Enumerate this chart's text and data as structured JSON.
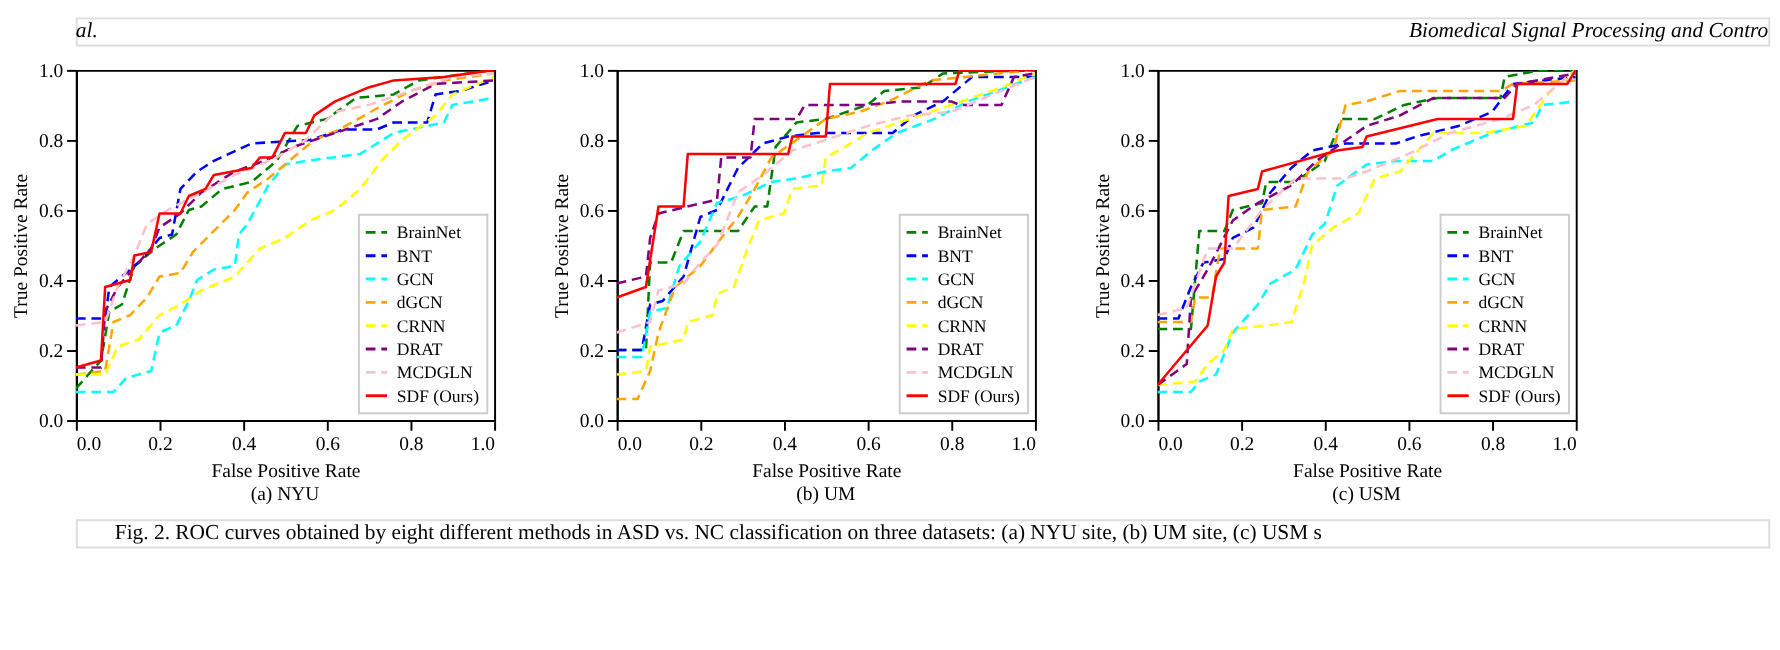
{
  "chart_data": [
    {
      "type": "line",
      "title": "(a) NYU",
      "xlabel": "False Positive Rate",
      "ylabel": "True Positive Rate",
      "xlim": [
        0,
        1
      ],
      "ylim": [
        0,
        1
      ],
      "xticks": [
        {
          "value": 0,
          "label": "0.0"
        },
        {
          "value": 0.2,
          "label": "0.2"
        },
        {
          "value": 0.4,
          "label": "0.4"
        },
        {
          "value": 0.6,
          "label": "0.6"
        },
        {
          "value": 0.8,
          "label": "0.8"
        },
        {
          "value": 1,
          "label": "1.0"
        }
      ],
      "yticks": [
        {
          "value": 0,
          "label": "0.0"
        },
        {
          "value": 0.2,
          "label": "0.2"
        },
        {
          "value": 0.4,
          "label": "0.4"
        },
        {
          "value": 0.6,
          "label": "0.6"
        },
        {
          "value": 0.8,
          "label": "0.8"
        },
        {
          "value": 1,
          "label": "1.0"
        }
      ],
      "grid": false,
      "legend": "bottom right",
      "annotations": [
        "al.",
        "Biomedical Signal Processing and Contro",
        "Fig. 2.  ROC curves obtained by eight different methods in ASD vs. NC classification on three datasets: (a) NYU site, (b) UM site, (c) USM s"
      ],
      "series": [
        {
          "name": "BrainNet",
          "color": "#008000",
          "line_style": "dashed",
          "x": [
            0,
            0.06,
            0.08,
            0.11,
            0.14,
            0.19,
            0.24,
            0.27,
            0.3,
            0.35,
            0.42,
            0.48,
            0.53,
            0.6,
            0.67,
            0.76,
            0.82,
            1
          ],
          "values": [
            0.09,
            0.17,
            0.31,
            0.33,
            0.44,
            0.49,
            0.53,
            0.6,
            0.61,
            0.66,
            0.68,
            0.74,
            0.84,
            0.86,
            0.92,
            0.93,
            0.97,
            1
          ]
        },
        {
          "name": "BNT",
          "color": "#0000ff",
          "line_style": "dashed",
          "x": [
            0,
            0.07,
            0.08,
            0.1,
            0.16,
            0.2,
            0.23,
            0.25,
            0.29,
            0.33,
            0.42,
            0.56,
            0.64,
            0.72,
            0.76,
            0.84,
            0.86,
            0.92,
            1
          ],
          "values": [
            0.29,
            0.29,
            0.38,
            0.4,
            0.46,
            0.52,
            0.53,
            0.66,
            0.71,
            0.74,
            0.79,
            0.8,
            0.83,
            0.83,
            0.85,
            0.85,
            0.93,
            0.94,
            0.97
          ]
        },
        {
          "name": "GCN",
          "color": "#00ffff",
          "line_style": "dashed",
          "x": [
            0,
            0.09,
            0.12,
            0.18,
            0.2,
            0.24,
            0.27,
            0.29,
            0.33,
            0.38,
            0.39,
            0.41,
            0.46,
            0.5,
            0.55,
            0.68,
            0.76,
            0.88,
            0.9,
            1
          ],
          "values": [
            0.08,
            0.08,
            0.12,
            0.14,
            0.25,
            0.27,
            0.34,
            0.4,
            0.43,
            0.44,
            0.53,
            0.56,
            0.67,
            0.73,
            0.74,
            0.76,
            0.82,
            0.85,
            0.9,
            0.92
          ]
        },
        {
          "name": "dGCN",
          "color": "#ffa500",
          "line_style": "dashed",
          "x": [
            0,
            0.07,
            0.09,
            0.13,
            0.17,
            0.2,
            0.25,
            0.28,
            0.33,
            0.38,
            0.41,
            0.46,
            0.5,
            0.57,
            0.63,
            0.72,
            0.8,
            0.88,
            1
          ],
          "values": [
            0.13,
            0.14,
            0.28,
            0.3,
            0.35,
            0.41,
            0.42,
            0.48,
            0.54,
            0.6,
            0.65,
            0.69,
            0.73,
            0.8,
            0.83,
            0.89,
            0.94,
            0.97,
            0.99
          ]
        },
        {
          "name": "CRNN",
          "color": "#ffff00",
          "line_style": "dashed",
          "x": [
            0,
            0.07,
            0.1,
            0.15,
            0.2,
            0.25,
            0.3,
            0.38,
            0.44,
            0.5,
            0.56,
            0.62,
            0.68,
            0.73,
            0.78,
            0.86,
            0.9,
            1
          ],
          "values": [
            0.13,
            0.13,
            0.21,
            0.23,
            0.3,
            0.33,
            0.37,
            0.41,
            0.49,
            0.52,
            0.57,
            0.6,
            0.66,
            0.74,
            0.8,
            0.87,
            0.93,
            0.98
          ]
        },
        {
          "name": "DRAT",
          "color": "#800080",
          "line_style": "dashed",
          "x": [
            0,
            0.06,
            0.07,
            0.1,
            0.15,
            0.18,
            0.2,
            0.25,
            0.3,
            0.38,
            0.45,
            0.52,
            0.62,
            0.72,
            0.78,
            0.86,
            1
          ],
          "values": [
            0.15,
            0.15,
            0.31,
            0.38,
            0.45,
            0.49,
            0.55,
            0.59,
            0.65,
            0.71,
            0.74,
            0.78,
            0.82,
            0.86,
            0.91,
            0.96,
            0.97
          ]
        },
        {
          "name": "MCDGLN",
          "color": "#ffc0cb",
          "line_style": "dashed",
          "x": [
            0,
            0.07,
            0.1,
            0.14,
            0.17,
            0.22,
            0.3,
            0.38,
            0.48,
            0.55,
            0.62,
            0.7,
            0.8,
            0.9,
            1
          ],
          "values": [
            0.27,
            0.28,
            0.38,
            0.47,
            0.56,
            0.6,
            0.65,
            0.7,
            0.75,
            0.8,
            0.88,
            0.9,
            0.94,
            0.98,
            0.99
          ]
        },
        {
          "name": "SDF (Ours)",
          "color": "#ff0000",
          "line_style": "solid",
          "x": [
            0,
            0.06,
            0.07,
            0.1,
            0.13,
            0.14,
            0.18,
            0.2,
            0.25,
            0.27,
            0.31,
            0.33,
            0.42,
            0.44,
            0.47,
            0.5,
            0.55,
            0.57,
            0.62,
            0.7,
            0.76,
            0.88,
            1
          ],
          "values": [
            0.15,
            0.17,
            0.38,
            0.39,
            0.4,
            0.47,
            0.48,
            0.59,
            0.59,
            0.64,
            0.66,
            0.7,
            0.72,
            0.75,
            0.75,
            0.82,
            0.82,
            0.87,
            0.91,
            0.95,
            0.97,
            0.98,
            1
          ]
        }
      ]
    },
    {
      "type": "line",
      "title": "(b) UM",
      "xlabel": "False Positive Rate",
      "ylabel": "True Positive Rate",
      "xlim": [
        0,
        1
      ],
      "ylim": [
        0,
        1
      ],
      "xticks": [
        {
          "value": 0,
          "label": "0.0"
        },
        {
          "value": 0.2,
          "label": "0.2"
        },
        {
          "value": 0.4,
          "label": "0.4"
        },
        {
          "value": 0.6,
          "label": "0.6"
        },
        {
          "value": 0.8,
          "label": "0.8"
        },
        {
          "value": 1,
          "label": "1.0"
        }
      ],
      "yticks": [
        {
          "value": 0,
          "label": "0.0"
        },
        {
          "value": 0.2,
          "label": "0.2"
        },
        {
          "value": 0.4,
          "label": "0.4"
        },
        {
          "value": 0.6,
          "label": "0.6"
        },
        {
          "value": 0.8,
          "label": "0.8"
        },
        {
          "value": 1,
          "label": "1.0"
        }
      ],
      "grid": false,
      "legend": "bottom right",
      "series": [
        {
          "name": "BrainNet",
          "color": "#008000",
          "line_style": "dashed",
          "x": [
            0,
            0.07,
            0.08,
            0.13,
            0.16,
            0.29,
            0.33,
            0.36,
            0.38,
            0.43,
            0.5,
            0.6,
            0.64,
            0.73,
            0.78,
            1
          ],
          "values": [
            0.2,
            0.2,
            0.45,
            0.45,
            0.54,
            0.54,
            0.61,
            0.61,
            0.78,
            0.85,
            0.86,
            0.9,
            0.94,
            0.95,
            0.99,
            1
          ]
        },
        {
          "name": "BNT",
          "color": "#0000ff",
          "line_style": "dashed",
          "x": [
            0,
            0.06,
            0.08,
            0.11,
            0.16,
            0.2,
            0.24,
            0.29,
            0.35,
            0.41,
            0.48,
            0.66,
            0.71,
            0.78,
            0.85,
            1
          ],
          "values": [
            0.2,
            0.2,
            0.33,
            0.34,
            0.41,
            0.58,
            0.6,
            0.72,
            0.79,
            0.81,
            0.82,
            0.82,
            0.87,
            0.91,
            0.98,
            0.98
          ]
        },
        {
          "name": "GCN",
          "color": "#00ffff",
          "line_style": "dashed",
          "x": [
            0,
            0.06,
            0.08,
            0.12,
            0.15,
            0.2,
            0.24,
            0.3,
            0.37,
            0.43,
            0.5,
            0.56,
            0.61,
            0.67,
            0.76,
            0.84,
            0.91,
            1
          ],
          "values": [
            0.18,
            0.18,
            0.31,
            0.32,
            0.44,
            0.51,
            0.62,
            0.64,
            0.68,
            0.69,
            0.71,
            0.72,
            0.77,
            0.82,
            0.86,
            0.91,
            0.94,
            0.98
          ]
        },
        {
          "name": "dGCN",
          "color": "#ffa500",
          "line_style": "dashed",
          "x": [
            0,
            0.05,
            0.08,
            0.1,
            0.14,
            0.2,
            0.25,
            0.29,
            0.33,
            0.37,
            0.43,
            0.5,
            0.58,
            0.65,
            0.75,
            1
          ],
          "values": [
            0.06,
            0.06,
            0.14,
            0.25,
            0.38,
            0.44,
            0.52,
            0.58,
            0.66,
            0.75,
            0.8,
            0.86,
            0.88,
            0.91,
            0.97,
            1
          ]
        },
        {
          "name": "CRNN",
          "color": "#ffff00",
          "line_style": "dashed",
          "x": [
            0,
            0.07,
            0.08,
            0.16,
            0.17,
            0.23,
            0.24,
            0.28,
            0.31,
            0.34,
            0.4,
            0.42,
            0.49,
            0.5,
            0.56,
            0.6,
            0.7,
            0.8,
            0.92,
            1
          ],
          "values": [
            0.13,
            0.14,
            0.21,
            0.23,
            0.28,
            0.3,
            0.36,
            0.38,
            0.48,
            0.57,
            0.59,
            0.66,
            0.67,
            0.75,
            0.79,
            0.82,
            0.86,
            0.9,
            0.95,
            0.99
          ]
        },
        {
          "name": "DRAT",
          "color": "#800080",
          "line_style": "dashed",
          "x": [
            0,
            0.07,
            0.08,
            0.1,
            0.24,
            0.25,
            0.32,
            0.33,
            0.43,
            0.45,
            0.6,
            0.68,
            0.8,
            0.82,
            0.92,
            0.95,
            1
          ],
          "values": [
            0.39,
            0.41,
            0.52,
            0.59,
            0.63,
            0.75,
            0.75,
            0.86,
            0.86,
            0.9,
            0.9,
            0.91,
            0.91,
            0.9,
            0.9,
            0.98,
            0.99
          ]
        },
        {
          "name": "MCDGLN",
          "color": "#ffc0cb",
          "line_style": "dashed",
          "x": [
            0,
            0.08,
            0.1,
            0.16,
            0.2,
            0.24,
            0.29,
            0.35,
            0.42,
            0.5,
            0.6,
            0.7,
            0.8,
            0.88,
            1
          ],
          "values": [
            0.25,
            0.28,
            0.37,
            0.39,
            0.45,
            0.5,
            0.65,
            0.7,
            0.77,
            0.8,
            0.84,
            0.87,
            0.88,
            0.92,
            0.98
          ]
        },
        {
          "name": "SDF (Ours)",
          "color": "#ff0000",
          "line_style": "solid",
          "x": [
            0,
            0.07,
            0.1,
            0.16,
            0.17,
            0.41,
            0.42,
            0.5,
            0.51,
            0.81,
            0.82,
            1
          ],
          "values": [
            0.35,
            0.38,
            0.61,
            0.61,
            0.76,
            0.76,
            0.81,
            0.81,
            0.96,
            0.96,
            1,
            1
          ]
        }
      ]
    },
    {
      "type": "line",
      "title": "(c) USM",
      "xlabel": "False Positive Rate",
      "ylabel": "True Positive Rate",
      "xlim": [
        0,
        1
      ],
      "ylim": [
        0,
        1
      ],
      "xticks": [
        {
          "value": 0,
          "label": "0.0"
        },
        {
          "value": 0.2,
          "label": "0.2"
        },
        {
          "value": 0.4,
          "label": "0.4"
        },
        {
          "value": 0.6,
          "label": "0.6"
        },
        {
          "value": 0.8,
          "label": "0.8"
        },
        {
          "value": 1,
          "label": "1.0"
        }
      ],
      "yticks": [
        {
          "value": 0,
          "label": "0.0"
        },
        {
          "value": 0.2,
          "label": "0.2"
        },
        {
          "value": 0.4,
          "label": "0.4"
        },
        {
          "value": 0.6,
          "label": "0.6"
        },
        {
          "value": 0.8,
          "label": "0.8"
        },
        {
          "value": 1,
          "label": "1.0"
        }
      ],
      "grid": false,
      "legend": "bottom right",
      "series": [
        {
          "name": "BrainNet",
          "color": "#008000",
          "line_style": "dashed",
          "x": [
            0,
            0.08,
            0.1,
            0.16,
            0.18,
            0.25,
            0.26,
            0.33,
            0.4,
            0.44,
            0.52,
            0.59,
            0.67,
            0.82,
            0.83,
            0.92,
            1
          ],
          "values": [
            0.26,
            0.26,
            0.54,
            0.54,
            0.6,
            0.62,
            0.68,
            0.68,
            0.74,
            0.86,
            0.86,
            0.9,
            0.92,
            0.92,
            0.98,
            1,
            1
          ]
        },
        {
          "name": "BNT",
          "color": "#0000ff",
          "line_style": "dashed",
          "x": [
            0,
            0.05,
            0.08,
            0.11,
            0.16,
            0.18,
            0.23,
            0.27,
            0.32,
            0.37,
            0.45,
            0.57,
            0.62,
            0.72,
            0.8,
            0.85,
            1
          ],
          "values": [
            0.29,
            0.29,
            0.38,
            0.45,
            0.46,
            0.52,
            0.55,
            0.65,
            0.72,
            0.77,
            0.79,
            0.79,
            0.81,
            0.84,
            0.88,
            0.96,
            0.98
          ]
        },
        {
          "name": "GCN",
          "color": "#00ffff",
          "line_style": "dashed",
          "x": [
            0,
            0.08,
            0.1,
            0.14,
            0.18,
            0.24,
            0.27,
            0.3,
            0.33,
            0.37,
            0.4,
            0.43,
            0.5,
            0.57,
            0.66,
            0.7,
            0.8,
            0.9,
            0.92,
            1
          ],
          "values": [
            0.08,
            0.08,
            0.11,
            0.13,
            0.25,
            0.33,
            0.39,
            0.41,
            0.43,
            0.53,
            0.56,
            0.67,
            0.73,
            0.74,
            0.74,
            0.77,
            0.82,
            0.85,
            0.9,
            0.91
          ]
        },
        {
          "name": "dGCN",
          "color": "#ffa500",
          "line_style": "dashed",
          "x": [
            0,
            0.08,
            0.09,
            0.13,
            0.15,
            0.24,
            0.25,
            0.33,
            0.36,
            0.42,
            0.45,
            0.5,
            0.58,
            0.82,
            0.85,
            1
          ],
          "values": [
            0.28,
            0.28,
            0.35,
            0.35,
            0.49,
            0.49,
            0.6,
            0.61,
            0.71,
            0.77,
            0.9,
            0.91,
            0.94,
            0.94,
            0.96,
            0.97
          ]
        },
        {
          "name": "CRNN",
          "color": "#ffff00",
          "line_style": "dashed",
          "x": [
            0,
            0.09,
            0.12,
            0.16,
            0.18,
            0.26,
            0.32,
            0.35,
            0.37,
            0.42,
            0.48,
            0.52,
            0.58,
            0.66,
            0.78,
            0.88,
            0.94,
            1
          ],
          "values": [
            0.1,
            0.11,
            0.16,
            0.2,
            0.26,
            0.27,
            0.28,
            0.39,
            0.5,
            0.55,
            0.59,
            0.69,
            0.71,
            0.82,
            0.82,
            0.84,
            0.94,
            1
          ]
        },
        {
          "name": "DRAT",
          "color": "#800080",
          "line_style": "dashed",
          "x": [
            0,
            0.07,
            0.08,
            0.12,
            0.18,
            0.24,
            0.32,
            0.38,
            0.5,
            0.58,
            0.66,
            0.83,
            0.86,
            1
          ],
          "values": [
            0.1,
            0.16,
            0.35,
            0.43,
            0.57,
            0.62,
            0.67,
            0.74,
            0.84,
            0.87,
            0.92,
            0.92,
            0.96,
            0.99
          ]
        },
        {
          "name": "MCDGLN",
          "color": "#ffc0cb",
          "line_style": "dashed",
          "x": [
            0,
            0.07,
            0.12,
            0.18,
            0.25,
            0.33,
            0.45,
            0.5,
            0.6,
            0.7,
            0.82,
            0.9,
            1
          ],
          "values": [
            0.3,
            0.32,
            0.49,
            0.49,
            0.6,
            0.69,
            0.69,
            0.71,
            0.76,
            0.82,
            0.86,
            0.9,
            1
          ]
        },
        {
          "name": "SDF (Ours)",
          "color": "#ff0000",
          "line_style": "solid",
          "x": [
            0,
            0.12,
            0.14,
            0.16,
            0.17,
            0.24,
            0.25,
            0.43,
            0.49,
            0.5,
            0.67,
            0.85,
            0.86,
            0.98,
            1
          ],
          "values": [
            0.1,
            0.27,
            0.41,
            0.45,
            0.64,
            0.66,
            0.71,
            0.77,
            0.78,
            0.81,
            0.86,
            0.86,
            0.96,
            0.96,
            1
          ]
        }
      ]
    }
  ]
}
